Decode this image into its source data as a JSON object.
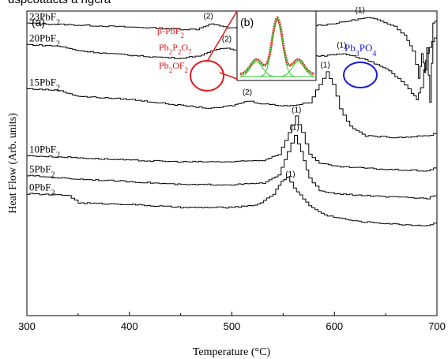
{
  "page": {
    "header_text": "dspcottacts a   ngcra"
  },
  "chart_data": {
    "type": "line",
    "panel_label": "(a)",
    "xlabel": "Temperature (°C)",
    "ylabel": "Heat Flow (Arb. units)",
    "xlim": [
      300,
      700
    ],
    "x_ticks": [
      "300",
      "400",
      "500",
      "600",
      "700"
    ],
    "series": [
      {
        "name": "23PbF2",
        "label_main": "23PbF",
        "label_sub": "2",
        "points": [
          [
            300,
            0.96
          ],
          [
            340,
            0.955
          ],
          [
            380,
            0.95
          ],
          [
            420,
            0.945
          ],
          [
            450,
            0.94
          ],
          [
            465,
            0.94
          ],
          [
            472,
            0.95
          ],
          [
            480,
            0.958
          ],
          [
            488,
            0.95
          ],
          [
            495,
            0.945
          ],
          [
            520,
            0.948
          ],
          [
            560,
            0.95
          ],
          [
            590,
            0.955
          ],
          [
            605,
            0.962
          ],
          [
            620,
            0.972
          ],
          [
            632,
            0.978
          ],
          [
            645,
            0.968
          ],
          [
            658,
            0.95
          ],
          [
            668,
            0.92
          ],
          [
            676,
            0.87
          ],
          [
            682,
            0.78
          ],
          [
            685,
            0.86
          ],
          [
            688,
            0.8
          ],
          [
            690,
            0.88
          ],
          [
            693,
            0.7
          ],
          [
            696,
            0.96
          ],
          [
            700,
            0.975
          ]
        ],
        "peaks": [
          {
            "x": 477,
            "label": "(2)"
          },
          {
            "x": 625,
            "label": "(1)"
          }
        ]
      },
      {
        "name": "20PbF2",
        "label_main": "20PbF",
        "label_sub": "2",
        "points": [
          [
            300,
            0.89
          ],
          [
            330,
            0.885
          ],
          [
            350,
            0.87
          ],
          [
            380,
            0.86
          ],
          [
            420,
            0.85
          ],
          [
            450,
            0.845
          ],
          [
            470,
            0.855
          ],
          [
            485,
            0.875
          ],
          [
            495,
            0.88
          ],
          [
            505,
            0.87
          ],
          [
            530,
            0.86
          ],
          [
            560,
            0.85
          ],
          [
            590,
            0.852
          ],
          [
            605,
            0.86
          ],
          [
            615,
            0.856
          ],
          [
            630,
            0.84
          ],
          [
            650,
            0.81
          ],
          [
            665,
            0.77
          ],
          [
            675,
            0.73
          ],
          [
            680,
            0.71
          ],
          [
            684,
            0.75
          ],
          [
            690,
            0.86
          ],
          [
            695,
            0.9
          ],
          [
            700,
            0.92
          ]
        ],
        "peaks": [
          {
            "x": 495,
            "label": "(2)"
          },
          {
            "x": 607,
            "label": "(1)"
          }
        ]
      },
      {
        "name": "15PbF2",
        "label_main": "15PbF",
        "label_sub": "2",
        "points": [
          [
            300,
            0.745
          ],
          [
            330,
            0.74
          ],
          [
            350,
            0.72
          ],
          [
            400,
            0.71
          ],
          [
            450,
            0.69
          ],
          [
            480,
            0.68
          ],
          [
            500,
            0.69
          ],
          [
            515,
            0.705
          ],
          [
            525,
            0.698
          ],
          [
            545,
            0.69
          ],
          [
            560,
            0.69
          ],
          [
            575,
            0.7
          ],
          [
            585,
            0.76
          ],
          [
            592,
            0.8
          ],
          [
            598,
            0.76
          ],
          [
            605,
            0.68
          ],
          [
            615,
            0.62
          ],
          [
            630,
            0.59
          ],
          [
            660,
            0.585
          ],
          [
            690,
            0.59
          ],
          [
            700,
            0.6
          ]
        ],
        "peaks": [
          {
            "x": 515,
            "label": "(2)"
          },
          {
            "x": 591,
            "label": "(1)"
          }
        ]
      },
      {
        "name": "10PbF2",
        "label_main": "10PbF",
        "label_sub": "2",
        "points": [
          [
            300,
            0.525
          ],
          [
            340,
            0.52
          ],
          [
            400,
            0.51
          ],
          [
            450,
            0.505
          ],
          [
            500,
            0.505
          ],
          [
            530,
            0.51
          ],
          [
            545,
            0.53
          ],
          [
            555,
            0.6
          ],
          [
            562,
            0.655
          ],
          [
            568,
            0.6
          ],
          [
            575,
            0.53
          ],
          [
            585,
            0.5
          ],
          [
            600,
            0.49
          ],
          [
            650,
            0.48
          ],
          [
            690,
            0.475
          ],
          [
            700,
            0.49
          ]
        ],
        "peaks": [
          {
            "x": 563,
            "label": "(1)"
          }
        ]
      },
      {
        "name": "5PbF2",
        "label_main": "5PbF",
        "label_sub": "2",
        "points": [
          [
            300,
            0.46
          ],
          [
            340,
            0.45
          ],
          [
            400,
            0.44
          ],
          [
            450,
            0.43
          ],
          [
            500,
            0.43
          ],
          [
            530,
            0.435
          ],
          [
            545,
            0.46
          ],
          [
            554,
            0.54
          ],
          [
            561,
            0.59
          ],
          [
            567,
            0.54
          ],
          [
            575,
            0.45
          ],
          [
            585,
            0.41
          ],
          [
            600,
            0.4
          ],
          [
            650,
            0.39
          ],
          [
            690,
            0.385
          ],
          [
            700,
            0.4
          ]
        ],
        "peaks": [
          {
            "x": 561,
            "label": "(1)"
          }
        ]
      },
      {
        "name": "0PbF2",
        "label_main": "0PbF",
        "label_sub": "2",
        "points": [
          [
            300,
            0.4
          ],
          [
            340,
            0.395
          ],
          [
            350,
            0.37
          ],
          [
            400,
            0.365
          ],
          [
            450,
            0.355
          ],
          [
            500,
            0.355
          ],
          [
            525,
            0.365
          ],
          [
            540,
            0.4
          ],
          [
            548,
            0.44
          ],
          [
            553,
            0.455
          ],
          [
            560,
            0.42
          ],
          [
            575,
            0.36
          ],
          [
            590,
            0.33
          ],
          [
            620,
            0.31
          ],
          [
            660,
            0.3
          ],
          [
            690,
            0.295
          ],
          [
            700,
            0.31
          ]
        ],
        "peaks": [
          {
            "x": 557,
            "label": "(1)"
          }
        ]
      }
    ],
    "inset": {
      "label": "(b)",
      "legend": [
        {
          "main": "β-PbF",
          "sub": "2",
          "color": "#e0191b"
        },
        {
          "main": "Pb",
          "sub": "2",
          "main2": "P",
          "sub2": "2",
          "main3": "O",
          "sub3": "7",
          "color": "#e0191b"
        },
        {
          "main": "Pb",
          "sub": "2",
          "main2": "OF",
          "sub2": "2",
          "color": "#e0191b"
        }
      ],
      "phase_right": {
        "main": "Pb",
        "sub": "3",
        "main2": "PO",
        "sub2": "4",
        "color": "#1a1ad8"
      }
    },
    "colors": {
      "curve": "#000000",
      "highlight_red": "#e0191b",
      "highlight_blue": "#1a1ad8",
      "fit_green": "#33cc33"
    }
  }
}
